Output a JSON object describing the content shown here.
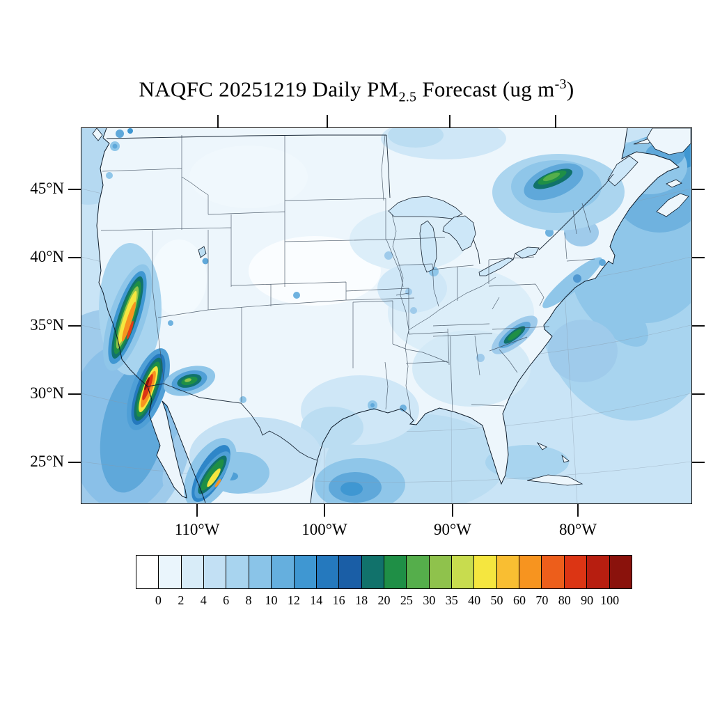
{
  "title": {
    "prefix": "NAQFC 20251219 Daily PM",
    "subscript": "2.5",
    "middle": " Forecast (ug m",
    "superscript": "-3",
    "suffix": ")"
  },
  "axes": {
    "lat_labels": [
      "45°N",
      "40°N",
      "35°N",
      "30°N",
      "25°N"
    ],
    "lon_labels": [
      "110°W",
      "100°W",
      "90°W",
      "80°W"
    ]
  },
  "colorbar": {
    "tick_labels": [
      "0",
      "2",
      "4",
      "6",
      "8",
      "10",
      "12",
      "14",
      "16",
      "18",
      "20",
      "25",
      "30",
      "35",
      "40",
      "50",
      "60",
      "70",
      "80",
      "90",
      "100"
    ],
    "colors": [
      "#FFFFFF",
      "#EAF5FC",
      "#D8ECF8",
      "#C2E0F4",
      "#A8D4EF",
      "#8AC4E8",
      "#65AFDE",
      "#3F97D2",
      "#2579BE",
      "#1A5EA6",
      "#11726B",
      "#1F8F46",
      "#55AE4B",
      "#8FC24C",
      "#C8DC4E",
      "#F5E63F",
      "#F9BE32",
      "#F7941F",
      "#ED5E1B",
      "#DC3514",
      "#B71E10",
      "#8A120C"
    ]
  },
  "chart_data": {
    "type": "heatmap",
    "subtype": "filled-contour-forecast-map",
    "model": "NAQFC",
    "date": "20251219",
    "variable": "Daily PM2.5",
    "units": "ug m-3",
    "region": "Contiguous United States with southern Canada and northern Mexico",
    "contour_levels": [
      0,
      2,
      4,
      6,
      8,
      10,
      12,
      14,
      16,
      18,
      20,
      25,
      30,
      35,
      40,
      50,
      60,
      70,
      80,
      90,
      100
    ],
    "level_colors": [
      "#FFFFFF",
      "#EAF5FC",
      "#D8ECF8",
      "#C2E0F4",
      "#A8D4EF",
      "#8AC4E8",
      "#65AFDE",
      "#3F97D2",
      "#2579BE",
      "#1A5EA6",
      "#11726B",
      "#1F8F46",
      "#55AE4B",
      "#8FC24C",
      "#C8DC4E",
      "#F5E63F",
      "#F9BE32",
      "#F7941F",
      "#ED5E1B",
      "#DC3514",
      "#B71E10",
      "#8A120C"
    ],
    "lat_ticks_deg_north": [
      45,
      40,
      35,
      30,
      25
    ],
    "lon_ticks_deg_west": [
      110,
      100,
      90,
      80
    ],
    "legend_position": "bottom",
    "hotspots": [
      {
        "region": "California Central Valley",
        "approx_peak_ugm3": "40-60"
      },
      {
        "region": "Southern California coast / northern Baja",
        "approx_peak_ugm3": "100+"
      },
      {
        "region": "Central Arizona",
        "approx_peak_ugm3": "20-30"
      },
      {
        "region": "Central Baja California peninsula",
        "approx_peak_ugm3": "35-50"
      },
      {
        "region": "St. Lawrence Valley near Montreal",
        "approx_peak_ugm3": "20-30"
      },
      {
        "region": "Southern Appalachians",
        "approx_peak_ugm3": "20-25"
      },
      {
        "region": "CONUS background",
        "approx_peak_ugm3": "0-8"
      },
      {
        "region": "Western Atlantic offshore",
        "approx_peak_ugm3": "4-12"
      }
    ]
  }
}
